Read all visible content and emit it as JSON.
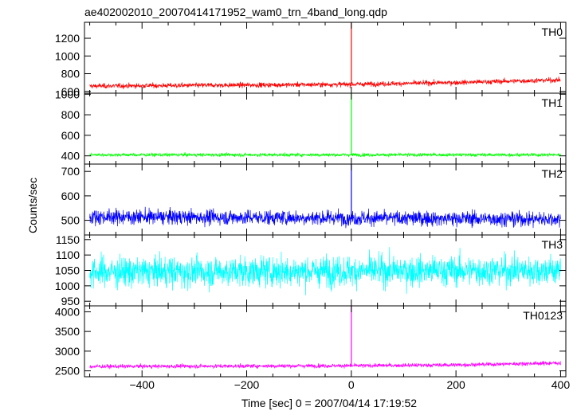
{
  "chart_data": {
    "type": "line",
    "title": "ae402002010_20070414171952_wam0_trn_4band_long.qdp",
    "xlabel": "Time [sec] 0 = 2007/04/14 17:19:52",
    "ylabel": "Counts/sec",
    "xlim": [
      -510,
      410
    ],
    "xticks": [
      -400,
      -200,
      0,
      200,
      400
    ],
    "xtick_labels": [
      "−400",
      "−200",
      "0",
      "200",
      "400"
    ],
    "grid": false,
    "panels": [
      {
        "name": "TH0",
        "color": "#ff0000",
        "ylim": [
          580,
          1380
        ],
        "yticks": [
          600,
          800,
          1000,
          1200
        ],
        "ytick_labels": [
          "600",
          "800",
          "1000",
          "1200"
        ],
        "baseline": [
          [
            -500,
            660
          ],
          [
            0,
            680
          ],
          [
            200,
            700
          ],
          [
            400,
            730
          ]
        ],
        "noise": 25,
        "spike": {
          "x": 0,
          "y": 1380
        }
      },
      {
        "name": "TH1",
        "color": "#00ff00",
        "ylim": [
          320,
          1010
        ],
        "yticks": [
          400,
          600,
          800,
          1000
        ],
        "ytick_labels": [
          "400",
          "600",
          "800",
          "1000"
        ],
        "baseline": [
          [
            -500,
            410
          ],
          [
            400,
            410
          ]
        ],
        "noise": 15,
        "spike": {
          "x": 0,
          "y": 1010
        }
      },
      {
        "name": "TH2",
        "color": "#0000ff",
        "ylim": [
          440,
          730
        ],
        "yticks": [
          500,
          600,
          700
        ],
        "ytick_labels": [
          "500",
          "600",
          "700"
        ],
        "baseline": [
          [
            -500,
            515
          ],
          [
            400,
            505
          ]
        ],
        "noise": 28,
        "spike": {
          "x": 0,
          "y": 730
        }
      },
      {
        "name": "TH3",
        "color": "#00ffff",
        "ylim": [
          935,
          1165
        ],
        "yticks": [
          950,
          1000,
          1050,
          1100,
          1150
        ],
        "ytick_labels": [
          "950",
          "1000",
          "1050",
          "1100",
          "1150"
        ],
        "baseline": [
          [
            -500,
            1045
          ],
          [
            400,
            1050
          ]
        ],
        "noise": 45,
        "spike": null
      },
      {
        "name": "TH0123",
        "color": "#ff00ff",
        "ylim": [
          2350,
          4150
        ],
        "yticks": [
          2500,
          3000,
          3500,
          4000
        ],
        "ytick_labels": [
          "2500",
          "3000",
          "3500",
          "4000"
        ],
        "baseline": [
          [
            -500,
            2610
          ],
          [
            0,
            2630
          ],
          [
            200,
            2650
          ],
          [
            400,
            2700
          ]
        ],
        "noise": 45,
        "spike": {
          "x": 0,
          "y": 4150
        }
      }
    ]
  }
}
